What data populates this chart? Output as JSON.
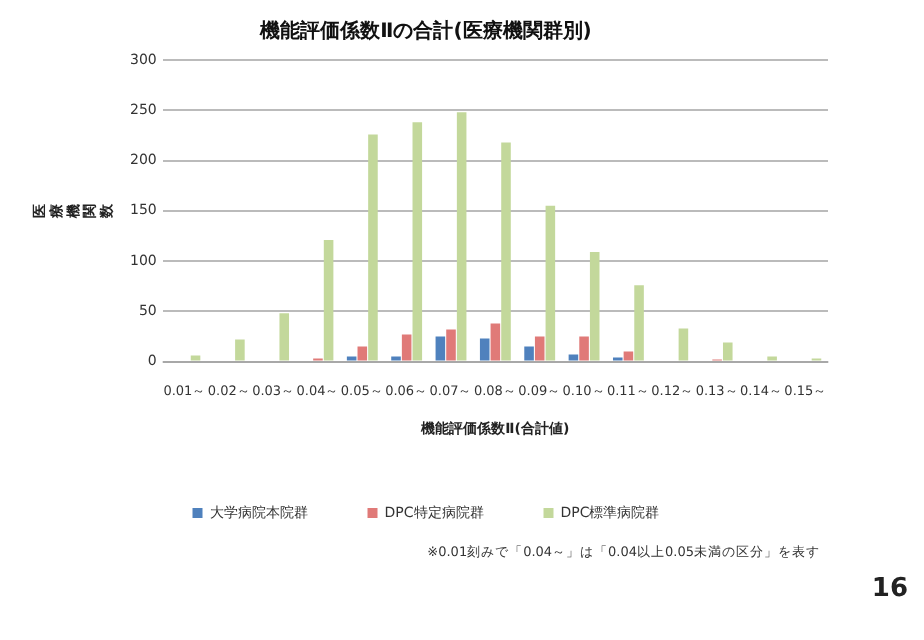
{
  "chart_data": {
    "type": "bar",
    "title": "機能評価係数Ⅱの合計(医療機関群別)",
    "xlabel": "機能評価係数Ⅱ(合計値)",
    "ylabel": "医療機関数",
    "categories": [
      "0.01～",
      "0.02～",
      "0.03～",
      "0.04～",
      "0.05～",
      "0.06～",
      "0.07～",
      "0.08～",
      "0.09～",
      "0.10～",
      "0.11～",
      "0.12～",
      "0.13～",
      "0.14～",
      "0.15～"
    ],
    "series": [
      {
        "name": "大学病院本院群",
        "color": "#4f81bd",
        "values": [
          0,
          0,
          0,
          0,
          5,
          5,
          25,
          23,
          15,
          7,
          4,
          0,
          0,
          0,
          0
        ]
      },
      {
        "name": "DPC特定病院群",
        "color": "#e07a78",
        "values": [
          0,
          0,
          0,
          3,
          15,
          27,
          32,
          38,
          25,
          25,
          10,
          0,
          2,
          0,
          0
        ]
      },
      {
        "name": "DPC標準病院群",
        "color": "#c3d89b",
        "values": [
          6,
          22,
          48,
          121,
          226,
          238,
          248,
          218,
          155,
          109,
          76,
          33,
          19,
          5,
          3
        ]
      }
    ],
    "ylim": [
      0,
      300
    ],
    "yticks": [
      0,
      50,
      100,
      150,
      200,
      250,
      300
    ],
    "grid": "y",
    "legend": "bottom",
    "annotations": [
      "※0.01刻みで「0.04～」は「0.04以上0.05未満の区分」を表す",
      "16"
    ]
  }
}
